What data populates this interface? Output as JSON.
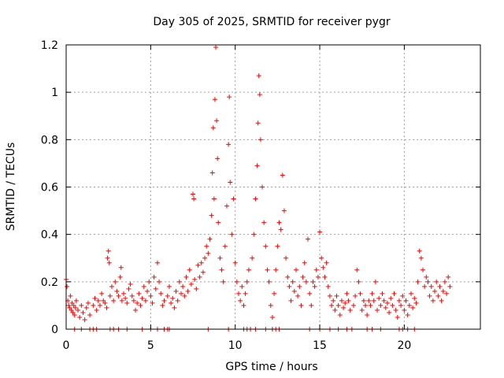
{
  "chart_data": {
    "type": "scatter",
    "title": "Day 305 of 2025, SRMTID for receiver pygr",
    "xlabel": "GPS time / hours",
    "ylabel": "SRMTID / TECUs",
    "xlim": [
      0,
      24.5
    ],
    "ylim": [
      0,
      1.2
    ],
    "x_ticks": [
      0,
      5,
      10,
      15,
      20
    ],
    "y_ticks": [
      0,
      0.2,
      0.4,
      0.6,
      0.8,
      1,
      1.2
    ],
    "x_tick_labels": [
      "0",
      "5",
      "10",
      "15",
      "20"
    ],
    "y_tick_labels": [
      "0",
      "0.2",
      "0.4",
      "0.6",
      "0.8",
      "1",
      "1.2"
    ],
    "grid": true,
    "marker": "+",
    "color": "#ff0000",
    "series": [
      {
        "name": "SRMTID",
        "points": [
          [
            0.0,
            0.21
          ],
          [
            0.05,
            0.18
          ],
          [
            0.1,
            0.12
          ],
          [
            0.15,
            0.1
          ],
          [
            0.2,
            0.09
          ],
          [
            0.25,
            0.14
          ],
          [
            0.3,
            0.08
          ],
          [
            0.35,
            0.11
          ],
          [
            0.4,
            0.07
          ],
          [
            0.45,
            0.1
          ],
          [
            0.5,
            0.06
          ],
          [
            0.55,
            0.09
          ],
          [
            0.6,
            0.12
          ],
          [
            0.7,
            0.08
          ],
          [
            0.8,
            0.05
          ],
          [
            0.9,
            0.1
          ],
          [
            1.0,
            0.07
          ],
          [
            1.1,
            0.04
          ],
          [
            1.2,
            0.09
          ],
          [
            1.3,
            0.11
          ],
          [
            1.4,
            0.06
          ],
          [
            1.6,
            0.1
          ],
          [
            1.7,
            0.13
          ],
          [
            1.8,
            0.08
          ],
          [
            1.9,
            0.12
          ],
          [
            2.0,
            0.1
          ],
          [
            2.1,
            0.15
          ],
          [
            2.2,
            0.12
          ],
          [
            2.3,
            0.11
          ],
          [
            2.4,
            0.09
          ],
          [
            2.45,
            0.3
          ],
          [
            2.5,
            0.33
          ],
          [
            2.55,
            0.28
          ],
          [
            2.6,
            0.14
          ],
          [
            2.7,
            0.18
          ],
          [
            2.8,
            0.12
          ],
          [
            2.9,
            0.2
          ],
          [
            3.0,
            0.16
          ],
          [
            3.1,
            0.14
          ],
          [
            3.2,
            0.22
          ],
          [
            3.25,
            0.26
          ],
          [
            3.3,
            0.12
          ],
          [
            3.4,
            0.15
          ],
          [
            3.5,
            0.13
          ],
          [
            3.6,
            0.11
          ],
          [
            3.7,
            0.17
          ],
          [
            3.8,
            0.19
          ],
          [
            3.9,
            0.14
          ],
          [
            4.0,
            0.12
          ],
          [
            4.1,
            0.08
          ],
          [
            4.2,
            0.11
          ],
          [
            4.3,
            0.15
          ],
          [
            4.4,
            0.1
          ],
          [
            4.5,
            0.13
          ],
          [
            4.6,
            0.18
          ],
          [
            4.7,
            0.12
          ],
          [
            4.8,
            0.16
          ],
          [
            4.9,
            0.2
          ],
          [
            5.0,
            0.14
          ],
          [
            5.1,
            0.11
          ],
          [
            5.2,
            0.22
          ],
          [
            5.3,
            0.17
          ],
          [
            5.4,
            0.28
          ],
          [
            5.5,
            0.2
          ],
          [
            5.6,
            0.15
          ],
          [
            5.7,
            0.1
          ],
          [
            5.8,
            0.12
          ],
          [
            6.0,
            0.14
          ],
          [
            6.1,
            0.18
          ],
          [
            6.2,
            0.11
          ],
          [
            6.3,
            0.13
          ],
          [
            6.4,
            0.09
          ],
          [
            6.5,
            0.16
          ],
          [
            6.6,
            0.12
          ],
          [
            6.7,
            0.2
          ],
          [
            6.8,
            0.15
          ],
          [
            6.9,
            0.18
          ],
          [
            7.0,
            0.14
          ],
          [
            7.1,
            0.22
          ],
          [
            7.2,
            0.16
          ],
          [
            7.3,
            0.25
          ],
          [
            7.4,
            0.19
          ],
          [
            7.5,
            0.57
          ],
          [
            7.55,
            0.55
          ],
          [
            7.6,
            0.21
          ],
          [
            7.7,
            0.17
          ],
          [
            7.8,
            0.27
          ],
          [
            7.9,
            0.22
          ],
          [
            8.0,
            0.28
          ],
          [
            8.1,
            0.24
          ],
          [
            8.2,
            0.3
          ],
          [
            8.3,
            0.35
          ],
          [
            8.4,
            0.32
          ],
          [
            8.5,
            0.38
          ],
          [
            8.6,
            0.48
          ],
          [
            8.65,
            0.66
          ],
          [
            8.7,
            0.85
          ],
          [
            8.75,
            0.55
          ],
          [
            8.8,
            0.97
          ],
          [
            8.85,
            1.19
          ],
          [
            8.9,
            0.88
          ],
          [
            8.95,
            0.72
          ],
          [
            9.0,
            0.45
          ],
          [
            9.1,
            0.3
          ],
          [
            9.2,
            0.25
          ],
          [
            9.3,
            0.2
          ],
          [
            9.4,
            0.35
          ],
          [
            9.5,
            0.52
          ],
          [
            9.6,
            0.78
          ],
          [
            9.65,
            0.98
          ],
          [
            9.7,
            0.62
          ],
          [
            9.8,
            0.4
          ],
          [
            9.9,
            0.55
          ],
          [
            10.0,
            0.28
          ],
          [
            10.1,
            0.2
          ],
          [
            10.2,
            0.15
          ],
          [
            10.3,
            0.12
          ],
          [
            10.4,
            0.18
          ],
          [
            10.5,
            0.1
          ],
          [
            10.6,
            0.15
          ],
          [
            10.7,
            0.2
          ],
          [
            10.8,
            0.25
          ],
          [
            11.0,
            0.3
          ],
          [
            11.1,
            0.4
          ],
          [
            11.2,
            0.55
          ],
          [
            11.3,
            0.69
          ],
          [
            11.35,
            0.87
          ],
          [
            11.4,
            1.07
          ],
          [
            11.45,
            0.99
          ],
          [
            11.5,
            0.8
          ],
          [
            11.6,
            0.6
          ],
          [
            11.7,
            0.45
          ],
          [
            11.8,
            0.35
          ],
          [
            11.9,
            0.25
          ],
          [
            12.0,
            0.2
          ],
          [
            12.1,
            0.1
          ],
          [
            12.2,
            0.05
          ],
          [
            12.3,
            0.15
          ],
          [
            12.4,
            0.25
          ],
          [
            12.5,
            0.35
          ],
          [
            12.6,
            0.45
          ],
          [
            12.7,
            0.42
          ],
          [
            12.8,
            0.65
          ],
          [
            12.9,
            0.5
          ],
          [
            13.0,
            0.3
          ],
          [
            13.1,
            0.22
          ],
          [
            13.2,
            0.18
          ],
          [
            13.3,
            0.12
          ],
          [
            13.4,
            0.2
          ],
          [
            13.5,
            0.16
          ],
          [
            13.6,
            0.25
          ],
          [
            13.7,
            0.14
          ],
          [
            13.8,
            0.18
          ],
          [
            13.9,
            0.1
          ],
          [
            14.0,
            0.22
          ],
          [
            14.1,
            0.28
          ],
          [
            14.2,
            0.2
          ],
          [
            14.3,
            0.38
          ],
          [
            14.4,
            0.15
          ],
          [
            14.5,
            0.1
          ],
          [
            14.6,
            0.2
          ],
          [
            14.7,
            0.18
          ],
          [
            14.8,
            0.25
          ],
          [
            14.9,
            0.22
          ],
          [
            15.0,
            0.41
          ],
          [
            15.1,
            0.3
          ],
          [
            15.2,
            0.26
          ],
          [
            15.3,
            0.22
          ],
          [
            15.4,
            0.28
          ],
          [
            15.5,
            0.18
          ],
          [
            15.6,
            0.14
          ],
          [
            15.7,
            0.1
          ],
          [
            15.8,
            0.12
          ],
          [
            15.9,
            0.08
          ],
          [
            16.0,
            0.14
          ],
          [
            16.1,
            0.1
          ],
          [
            16.2,
            0.06
          ],
          [
            16.3,
            0.12
          ],
          [
            16.4,
            0.09
          ],
          [
            16.5,
            0.11
          ],
          [
            16.6,
            0.15
          ],
          [
            16.7,
            0.12
          ],
          [
            16.8,
            0.08
          ],
          [
            17.0,
            0.1
          ],
          [
            17.1,
            0.14
          ],
          [
            17.2,
            0.25
          ],
          [
            17.3,
            0.2
          ],
          [
            17.4,
            0.15
          ],
          [
            17.5,
            0.08
          ],
          [
            17.6,
            0.12
          ],
          [
            17.7,
            0.1
          ],
          [
            17.8,
            0.06
          ],
          [
            17.9,
            0.12
          ],
          [
            18.0,
            0.1
          ],
          [
            18.1,
            0.15
          ],
          [
            18.2,
            0.12
          ],
          [
            18.3,
            0.2
          ],
          [
            18.4,
            0.08
          ],
          [
            18.5,
            0.13
          ],
          [
            18.6,
            0.1
          ],
          [
            18.7,
            0.15
          ],
          [
            18.8,
            0.12
          ],
          [
            18.9,
            0.09
          ],
          [
            19.0,
            0.11
          ],
          [
            19.1,
            0.07
          ],
          [
            19.2,
            0.13
          ],
          [
            19.3,
            0.1
          ],
          [
            19.4,
            0.15
          ],
          [
            19.5,
            0.08
          ],
          [
            19.6,
            0.05
          ],
          [
            19.7,
            0.12
          ],
          [
            19.8,
            0.1
          ],
          [
            19.9,
            0.14
          ],
          [
            20.0,
            0.08
          ],
          [
            20.1,
            0.12
          ],
          [
            20.2,
            0.06
          ],
          [
            20.3,
            0.1
          ],
          [
            20.4,
            0.15
          ],
          [
            20.5,
            0.09
          ],
          [
            20.6,
            0.13
          ],
          [
            20.7,
            0.11
          ],
          [
            20.8,
            0.2
          ],
          [
            20.9,
            0.33
          ],
          [
            21.0,
            0.3
          ],
          [
            21.1,
            0.25
          ],
          [
            21.2,
            0.18
          ],
          [
            21.3,
            0.22
          ],
          [
            21.4,
            0.2
          ],
          [
            21.5,
            0.14
          ],
          [
            21.6,
            0.18
          ],
          [
            21.7,
            0.12
          ],
          [
            21.8,
            0.16
          ],
          [
            21.9,
            0.2
          ],
          [
            22.0,
            0.14
          ],
          [
            22.1,
            0.18
          ],
          [
            22.2,
            0.12
          ],
          [
            22.3,
            0.16
          ],
          [
            22.4,
            0.2
          ],
          [
            22.5,
            0.15
          ],
          [
            22.6,
            0.22
          ],
          [
            22.7,
            0.18
          ]
        ]
      },
      {
        "name": "SRMTID (near zero)",
        "points": [
          [
            0.5,
            0.0
          ],
          [
            0.9,
            0.0
          ],
          [
            1.4,
            0.0
          ],
          [
            1.6,
            0.0
          ],
          [
            1.8,
            0.0
          ],
          [
            2.6,
            0.0
          ],
          [
            2.8,
            0.0
          ],
          [
            3.1,
            0.0
          ],
          [
            3.6,
            0.0
          ],
          [
            4.5,
            0.0
          ],
          [
            5.0,
            0.0
          ],
          [
            5.4,
            0.0
          ],
          [
            5.8,
            0.0
          ],
          [
            6.0,
            0.0
          ],
          [
            6.1,
            0.0
          ],
          [
            8.4,
            0.0
          ],
          [
            9.6,
            0.0
          ],
          [
            10.5,
            0.0
          ],
          [
            10.7,
            0.0
          ],
          [
            10.9,
            0.0
          ],
          [
            11.2,
            0.0
          ],
          [
            11.8,
            0.0
          ],
          [
            12.2,
            0.0
          ],
          [
            12.4,
            0.0
          ],
          [
            12.6,
            0.0
          ],
          [
            14.4,
            0.0
          ],
          [
            15.0,
            0.0
          ],
          [
            15.6,
            0.0
          ],
          [
            16.1,
            0.0
          ],
          [
            16.6,
            0.0
          ],
          [
            16.9,
            0.0
          ],
          [
            17.8,
            0.0
          ],
          [
            18.1,
            0.0
          ],
          [
            18.6,
            0.0
          ],
          [
            19.7,
            0.0
          ],
          [
            19.9,
            0.0
          ],
          [
            20.2,
            0.0
          ],
          [
            20.6,
            0.0
          ]
        ]
      }
    ]
  }
}
